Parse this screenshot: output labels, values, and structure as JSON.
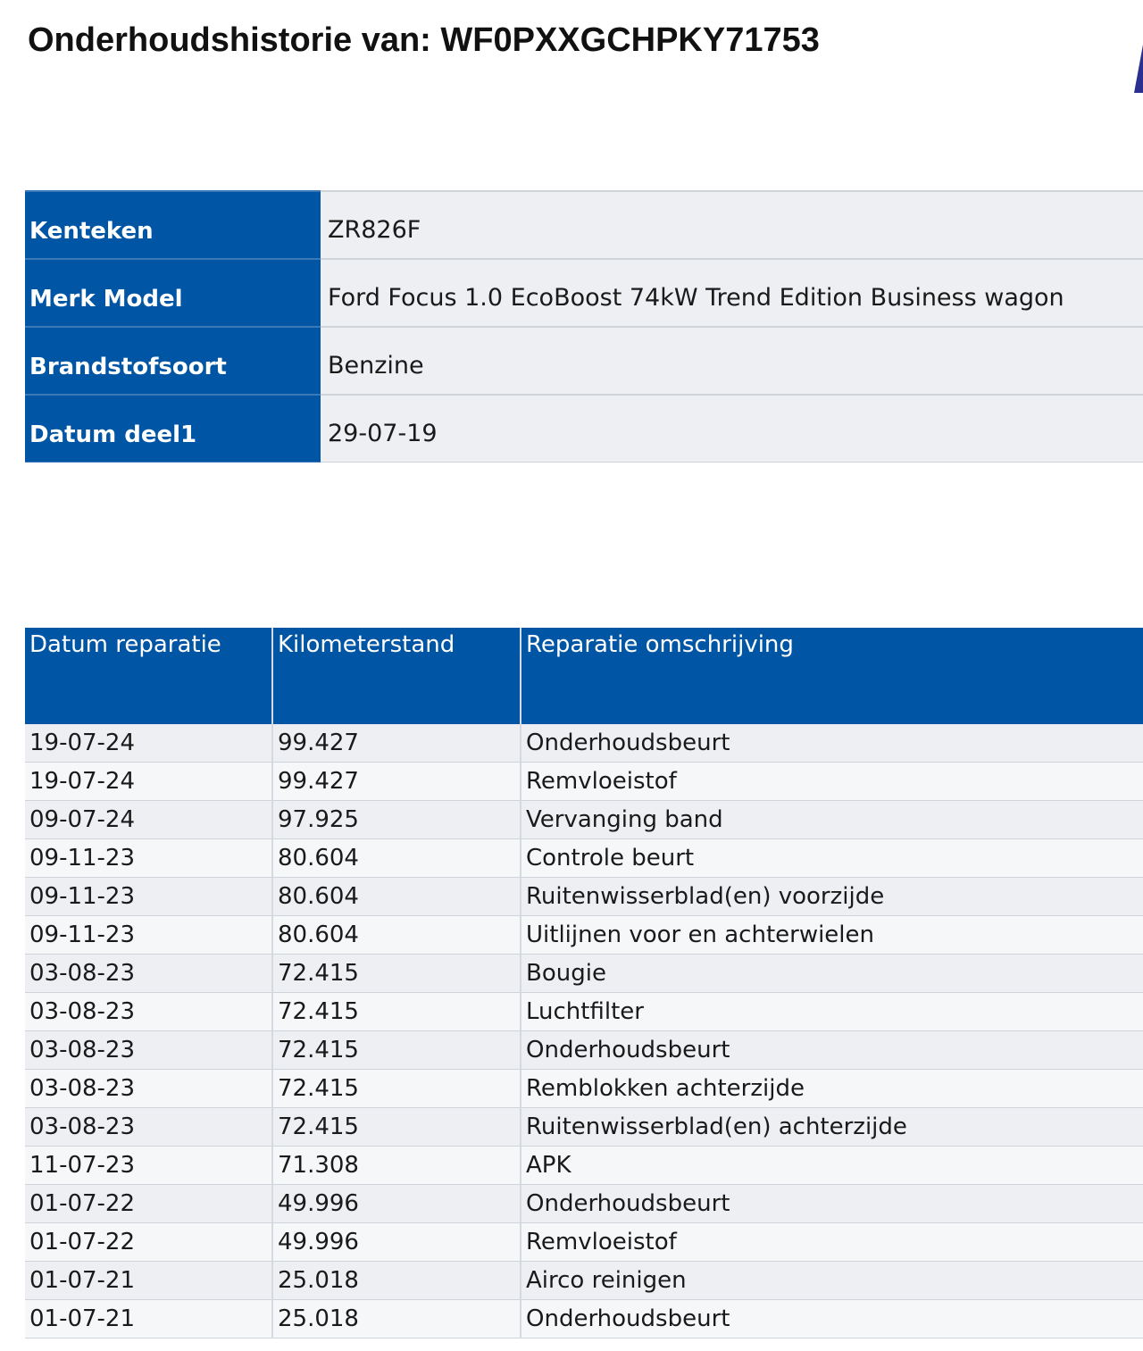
{
  "title": "Onderhoudshistorie van: WF0PXXGCHPKY71753",
  "colors": {
    "header_blue": "#0055a5",
    "row_bg": "#eeeff3"
  },
  "vehicle": [
    {
      "label": "Kenteken",
      "value": "ZR826F"
    },
    {
      "label": "Merk Model",
      "value": "Ford Focus 1.0 EcoBoost 74kW Trend Edition Business wagon"
    },
    {
      "label": "Brandstofsoort",
      "value": "Benzine"
    },
    {
      "label": "Datum deel1",
      "value": "29-07-19"
    }
  ],
  "history": {
    "columns": [
      "Datum reparatie",
      "Kilometerstand",
      "Reparatie omschrijving"
    ],
    "rows": [
      [
        "19-07-24",
        "99.427",
        "Onderhoudsbeurt"
      ],
      [
        "19-07-24",
        "99.427",
        "Remvloeistof"
      ],
      [
        "09-07-24",
        "97.925",
        "Vervanging band"
      ],
      [
        "09-11-23",
        "80.604",
        "Controle beurt"
      ],
      [
        "09-11-23",
        "80.604",
        "Ruitenwisserblad(en) voorzijde"
      ],
      [
        "09-11-23",
        "80.604",
        "Uitlijnen voor en achterwielen"
      ],
      [
        "03-08-23",
        "72.415",
        "Bougie"
      ],
      [
        "03-08-23",
        "72.415",
        "Luchtfilter"
      ],
      [
        "03-08-23",
        "72.415",
        "Onderhoudsbeurt"
      ],
      [
        "03-08-23",
        "72.415",
        "Remblokken achterzijde"
      ],
      [
        "03-08-23",
        "72.415",
        "Ruitenwisserblad(en) achterzijde"
      ],
      [
        "11-07-23",
        "71.308",
        "APK"
      ],
      [
        "01-07-22",
        "49.996",
        "Onderhoudsbeurt"
      ],
      [
        "01-07-22",
        "49.996",
        "Remvloeistof"
      ],
      [
        "01-07-21",
        "25.018",
        "Airco reinigen"
      ],
      [
        "01-07-21",
        "25.018",
        "Onderhoudsbeurt"
      ]
    ]
  }
}
